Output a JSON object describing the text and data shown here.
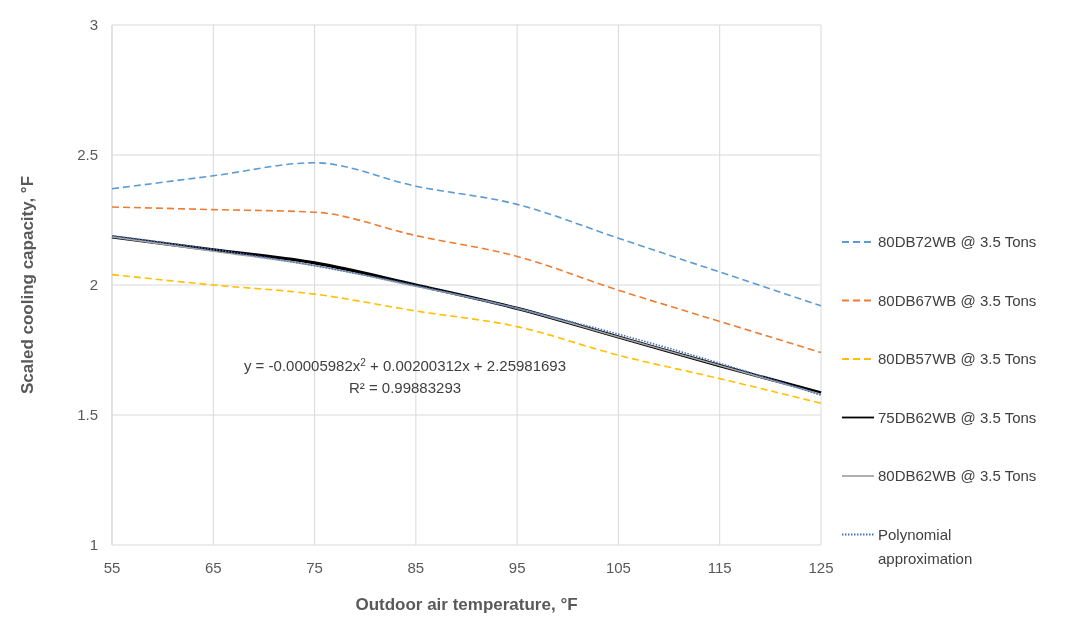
{
  "chart_data": {
    "type": "line",
    "xlabel": "Outdoor air temperature, °F",
    "ylabel": "Scaled cooling capacity, °F",
    "x": [
      55,
      65,
      75,
      85,
      95,
      105,
      115,
      125
    ],
    "series": [
      {
        "name": "80DB72WB @ 3.5 Tons",
        "color": "#5b9bd5",
        "line_style": "dashed",
        "values": [
          2.37,
          2.42,
          2.47,
          2.38,
          2.31,
          2.18,
          2.05,
          1.92
        ]
      },
      {
        "name": "80DB67WB @ 3.5 Tons",
        "color": "#ed7d31",
        "line_style": "dashed",
        "values": [
          2.3,
          2.29,
          2.28,
          2.19,
          2.11,
          1.98,
          1.86,
          1.74
        ]
      },
      {
        "name": "80DB57WB @ 3.5 Tons",
        "color": "#ffc000",
        "line_style": "dashed",
        "values": [
          2.04,
          2.0,
          1.965,
          1.9,
          1.84,
          1.73,
          1.64,
          1.545
        ]
      },
      {
        "name": "75DB62WB @ 3.5 Tons",
        "color": "#000000",
        "line_style": "solid",
        "values": [
          2.185,
          2.135,
          2.085,
          2.0,
          1.91,
          1.8,
          1.69,
          1.585
        ]
      },
      {
        "name": "80DB62WB @ 3.5 Tons",
        "color": "#a5a5a5",
        "line_style": "solid",
        "values": [
          2.185,
          2.13,
          2.075,
          1.995,
          1.91,
          1.8,
          1.69,
          1.58
        ]
      },
      {
        "name": "Polynomial approximation",
        "color": "#4472c4",
        "line_style": "dotted",
        "values": [
          2.189,
          2.137,
          2.074,
          1.998,
          1.91,
          1.811,
          1.699,
          1.576
        ]
      }
    ],
    "annotations": [
      "y = -0.00005982x$^{2}$ + 0.00200312x + 2.25981693",
      "R² = 0.99883293"
    ],
    "xlim": [
      55,
      125
    ],
    "xticks": [
      55,
      65,
      75,
      85,
      95,
      105,
      115,
      125
    ],
    "ylim": [
      1,
      3
    ],
    "yticks": [
      {
        "value": 1,
        "label": "1"
      },
      {
        "value": 1.5,
        "label": "1.5"
      },
      {
        "value": 2,
        "label": "2"
      },
      {
        "value": 2.5,
        "label": "2.5"
      },
      {
        "value": 3,
        "label": "3"
      }
    ],
    "grid": true,
    "legend": "right",
    "marker": "none"
  }
}
